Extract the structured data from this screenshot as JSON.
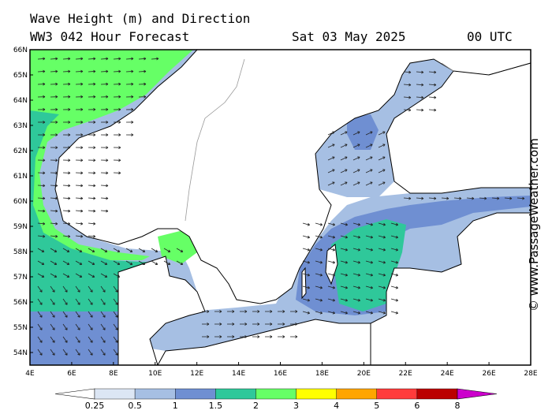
{
  "title_line1": "Wave Height (m) and Direction",
  "title_line2": "WW3 042 Hour Forecast",
  "valid_date": "Sat 03 May 2025",
  "valid_time": "00 UTC",
  "credit": "© www.PassageWeather.com",
  "map": {
    "region": "Baltic Sea / Skagerrak / North Sea coast of Norway",
    "lat_labels": [
      "66N",
      "65N",
      "64N",
      "63N",
      "62N",
      "61N",
      "60N",
      "59N",
      "58N",
      "57N",
      "56N",
      "55N",
      "54N"
    ],
    "lon_labels": [
      "4E",
      "6E",
      "8E",
      "10E",
      "12E",
      "14E",
      "16E",
      "18E",
      "20E",
      "22E",
      "24E",
      "26E",
      "28E"
    ]
  },
  "legend": {
    "colors": [
      "#ffffff",
      "#dce6f4",
      "#a6bfe3",
      "#6f8fd2",
      "#2fc89a",
      "#66ff66",
      "#ffff00",
      "#ffa500",
      "#ff3b3b",
      "#bb0000",
      "#cc00cc"
    ],
    "tick_labels": [
      "0.25",
      "0.5",
      "1",
      "1.5",
      "2",
      "3",
      "4",
      "5",
      "6",
      "8"
    ]
  }
}
